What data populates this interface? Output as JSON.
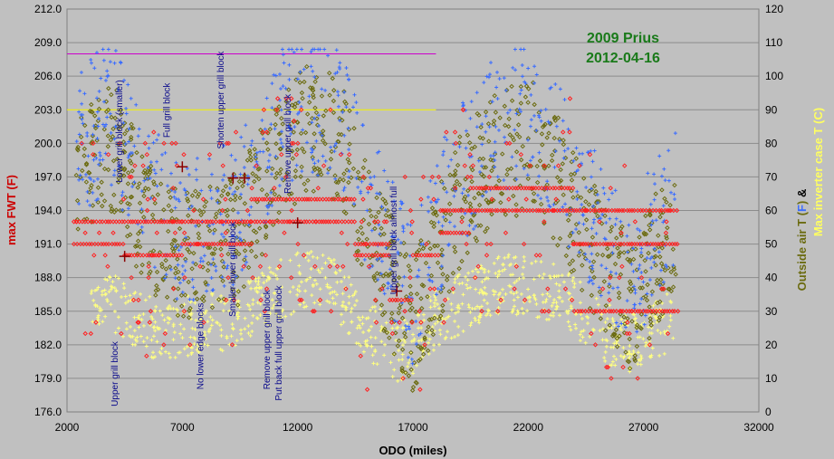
{
  "chart_data": {
    "type": "scatter",
    "title": [
      "2009 Prius",
      "2012-04-16"
    ],
    "xlabel": "ODO (miles)",
    "ylabel_left": "max FWT (F)",
    "ylabel_right": {
      "part1": "Outside air T (F)",
      "part1_prefix": "Outside air T (",
      "part1_F": "F",
      "part1_suffix": ")",
      "amp": " &",
      "part2": "Max inverter case T (C)"
    },
    "xlim": [
      2000,
      32000
    ],
    "ylim_left": [
      176.0,
      212.0
    ],
    "ylim_right": [
      0,
      120
    ],
    "x_ticks": [
      2000,
      7000,
      12000,
      17000,
      22000,
      27000,
      32000
    ],
    "x_tick_labels": [
      "2000",
      "7000",
      "12000",
      "17000",
      "22000",
      "27000",
      "32000"
    ],
    "y_left_ticks": [
      176.0,
      179.0,
      182.0,
      185.0,
      188.0,
      191.0,
      194.0,
      197.0,
      200.0,
      203.0,
      206.0,
      209.0,
      212.0
    ],
    "y_left_tick_labels": [
      "176.0",
      "179.0",
      "182.0",
      "185.0",
      "188.0",
      "191.0",
      "194.0",
      "197.0",
      "200.0",
      "203.0",
      "206.0",
      "209.0",
      "212.0"
    ],
    "y_right_ticks": [
      0,
      10,
      20,
      30,
      40,
      50,
      60,
      70,
      80,
      90,
      100,
      110,
      120
    ],
    "y_right_tick_labels": [
      "0",
      "10",
      "20",
      "30",
      "40",
      "50",
      "60",
      "70",
      "80",
      "90",
      "100",
      "110",
      "120"
    ],
    "grid": true,
    "reference_lines": [
      {
        "y_left": 208.0,
        "x_range": [
          2000,
          18000
        ],
        "color": "#cc00cc"
      },
      {
        "y_left": 203.0,
        "x_range": [
          2000,
          18000
        ],
        "color": "#ffff00"
      }
    ],
    "annotations": [
      {
        "text": "Upper grill block",
        "x": 4200,
        "y_left": 176.5
      },
      {
        "text": "Lower grill block (smaller)",
        "x": 4400,
        "y_left": 196.5
      },
      {
        "text": "Full grill block",
        "x": 6450,
        "y_left": 200.5
      },
      {
        "text": "No lower edge blocks",
        "x": 7900,
        "y_left": 178.0
      },
      {
        "text": "Shorten upper grill block",
        "x": 8800,
        "y_left": 199.5
      },
      {
        "text": "Smaller lower grill block",
        "x": 9300,
        "y_left": 184.5
      },
      {
        "text": "Remove upper grill block",
        "x": 10800,
        "y_left": 178.0
      },
      {
        "text": "Put back full upper grill block",
        "x": 11300,
        "y_left": 177.0
      },
      {
        "text": "Remove upper grill block",
        "x": 11700,
        "y_left": 195.5
      },
      {
        "text": "Upper grill block almost full",
        "x": 16300,
        "y_left": 186.5
      }
    ],
    "markers": [
      {
        "x": 4500,
        "y_left": 189.9
      },
      {
        "x": 7000,
        "y_left": 197.9
      },
      {
        "x": 9200,
        "y_left": 196.9
      },
      {
        "x": 9700,
        "y_left": 196.9
      },
      {
        "x": 12000,
        "y_left": 192.9
      },
      {
        "x": 16300,
        "y_left": 186.8
      }
    ],
    "series": [
      {
        "name": "max FWT (F)",
        "axis": "left",
        "marker": "diamond",
        "color": "#ff2020"
      },
      {
        "name": "Outside air T (F)",
        "axis": "right",
        "marker": "diamond",
        "color": "#6b6b10"
      },
      {
        "name": "Outside air T (F)",
        "axis": "right",
        "marker": "plus",
        "color": "#3a6cff"
      },
      {
        "name": "Max inverter case T (C)",
        "axis": "right",
        "marker": "plus",
        "color": "#ffff80"
      }
    ]
  },
  "colors": {
    "background": "#c0c0c0",
    "grid": "#8c8c8c",
    "fwt": "#ff2020",
    "olive": "#6b6b10",
    "blue": "#3a6cff",
    "yellow": "#ffff80",
    "title": "#1a7a1a",
    "annotation": "#0a0a8c",
    "ylabel_left": "#cc0000"
  }
}
